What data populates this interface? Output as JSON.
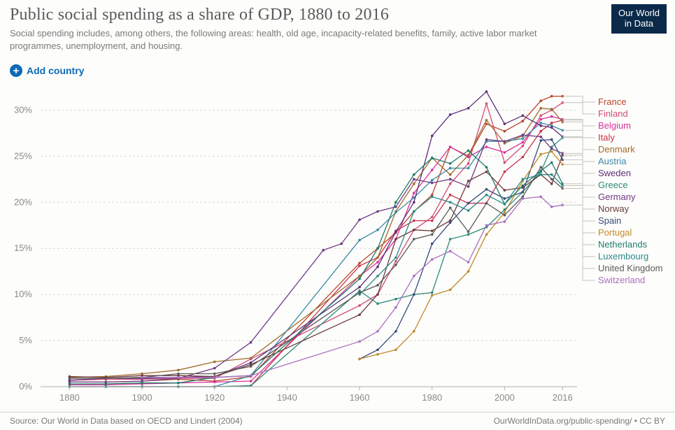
{
  "logo": {
    "line1": "Our World",
    "line2": "in Data",
    "bg": "#0b2a4a"
  },
  "title": "Public social spending as a share of GDP, 1880 to 2016",
  "subtitle": "Social spending includes, among others, the following areas: health, old age, incapacity-related benefits, family, active labor market programmes, unemployment, and housing.",
  "add_country_label": "Add country",
  "footer": {
    "source": "Source: Our World in Data based on OECD and Lindert (2004)",
    "attribution": "OurWorldInData.org/public-spending/ • CC BY"
  },
  "chart": {
    "type": "line",
    "background_color": "#fdfdfb",
    "grid_color": "#d8d8d4",
    "axis_text_color": "#8a8a8a",
    "x": {
      "min": 1872,
      "max": 2020,
      "ticks": [
        1880,
        1900,
        1920,
        1940,
        1960,
        1980,
        2000,
        2016
      ]
    },
    "y": {
      "min": 0,
      "max": 32,
      "ticks": [
        0,
        5,
        10,
        15,
        20,
        25,
        30
      ],
      "suffix": "%"
    },
    "line_width": 1.3,
    "marker_radius": 1.8,
    "legend_order": [
      "France",
      "Finland",
      "Belgium",
      "Italy",
      "Denmark",
      "Austria",
      "Sweden",
      "Greece",
      "Germany",
      "Norway",
      "Spain",
      "Portugal",
      "Netherlands",
      "Luxembourg",
      "United Kingdom",
      "Switzerland"
    ],
    "series": {
      "France": {
        "color": "#b74428",
        "data": {
          "1880": 0.5,
          "1890": 0.5,
          "1900": 0.6,
          "1910": 0.8,
          "1920": 0.6,
          "1930": 1.1,
          "1960": 13.4,
          "1965": 15,
          "1970": 16.7,
          "1975": 19,
          "1980": 20.8,
          "1985": 26,
          "1990": 25,
          "1995": 28.5,
          "2000": 27.7,
          "2005": 28.8,
          "2010": 31,
          "2013": 31.5,
          "2016": 31.5
        }
      },
      "Finland": {
        "color": "#d24c78",
        "data": {
          "1880": 0.7,
          "1890": 0.8,
          "1900": 0.8,
          "1910": 0.9,
          "1920": 0.9,
          "1930": 3,
          "1960": 8.8,
          "1965": 10,
          "1970": 13.6,
          "1975": 17,
          "1980": 18.4,
          "1985": 22,
          "1990": 24.2,
          "1995": 30.7,
          "2000": 24.3,
          "2005": 26.1,
          "2010": 29.4,
          "2013": 30,
          "2016": 30.8
        }
      },
      "Belgium": {
        "color": "#d6349c",
        "data": {
          "1880": 0.2,
          "1890": 0.2,
          "1900": 0.3,
          "1910": 0.4,
          "1920": 0.5,
          "1930": 0.6,
          "1960": 12,
          "1965": 13.5,
          "1970": 16,
          "1975": 21,
          "1980": 23.5,
          "1985": 26,
          "1990": 24.9,
          "1995": 26,
          "2000": 25.4,
          "2005": 26.5,
          "2010": 29,
          "2013": 29.3,
          "2016": 29
        }
      },
      "Italy": {
        "color": "#c9314a",
        "data": {
          "1880": 0,
          "1890": 0,
          "1900": 0,
          "1910": 0,
          "1920": 0,
          "1930": 0.1,
          "1960": 13.1,
          "1965": 14,
          "1970": 16.9,
          "1975": 18,
          "1980": 18,
          "1985": 20.8,
          "1990": 19.9,
          "1995": 19.9,
          "2000": 23.3,
          "2005": 24.9,
          "2010": 27.7,
          "2013": 28.6,
          "2016": 28.9
        }
      },
      "Denmark": {
        "color": "#a06a2c",
        "data": {
          "1880": 1,
          "1890": 1.1,
          "1900": 1.4,
          "1910": 1.8,
          "1920": 2.7,
          "1930": 3.1,
          "1960": 12,
          "1965": 14,
          "1970": 19,
          "1975": 22,
          "1980": 24.8,
          "1985": 23,
          "1990": 25.1,
          "1995": 28.9,
          "2000": 26.4,
          "2005": 27.2,
          "2010": 30.2,
          "2013": 30.1,
          "2016": 28.7
        }
      },
      "Austria": {
        "color": "#3b88a6",
        "data": {
          "1880": 0,
          "1890": 0,
          "1900": 0,
          "1910": 0,
          "1920": 0,
          "1930": 1.2,
          "1960": 15.9,
          "1965": 17,
          "1970": 18.9,
          "1975": 20.5,
          "1980": 22.4,
          "1985": 23.7,
          "1990": 23.7,
          "1995": 26.6,
          "2000": 26.6,
          "2005": 26.9,
          "2010": 28.6,
          "2013": 28.3,
          "2016": 27.8
        }
      },
      "Sweden": {
        "color": "#5b2f7a",
        "data": {
          "1880": 0.7,
          "1890": 0.9,
          "1900": 0.9,
          "1910": 1,
          "1920": 1.1,
          "1930": 2.6,
          "1960": 10.8,
          "1965": 13,
          "1970": 16.8,
          "1975": 20,
          "1980": 27.2,
          "1985": 29.5,
          "1990": 30.2,
          "1995": 32,
          "2000": 28.5,
          "2005": 29.4,
          "2010": 28.3,
          "2013": 28.1,
          "2016": 27.1
        }
      },
      "Greece": {
        "color": "#2f8a7a",
        "data": {
          "1880": 0,
          "1890": 0,
          "1900": 0,
          "1910": 0,
          "1920": 0,
          "1930": 0.1,
          "1960": 10.4,
          "1965": 9,
          "1970": 9.5,
          "1975": 10,
          "1980": 10.2,
          "1985": 16,
          "1990": 16.5,
          "1995": 17.3,
          "2000": 19.2,
          "2005": 21.1,
          "2010": 23.3,
          "2013": 26,
          "2016": 27
        }
      },
      "Germany": {
        "color": "#6f3a87",
        "data": {
          "1880": 0.5,
          "1890": 0.5,
          "1900": 0.6,
          "1910": 0.9,
          "1920": 2,
          "1930": 4.8,
          "1950": 14.8,
          "1955": 15.5,
          "1960": 18.1,
          "1965": 19,
          "1970": 19.5,
          "1975": 22.5,
          "1980": 22.1,
          "1985": 22.5,
          "1990": 21.7,
          "1995": 26.8,
          "2000": 26.6,
          "2005": 27.3,
          "2010": 27.1,
          "2013": 25.8,
          "2016": 25.3
        }
      },
      "Norway": {
        "color": "#6b3b3b",
        "data": {
          "1880": 1.1,
          "1890": 1,
          "1900": 1.2,
          "1910": 1.2,
          "1920": 1.1,
          "1930": 2.4,
          "1960": 7.8,
          "1965": 10,
          "1970": 16,
          "1975": 17,
          "1980": 16.9,
          "1985": 18,
          "1990": 22.3,
          "1995": 23.3,
          "2000": 21.3,
          "2005": 21.6,
          "2010": 23,
          "2013": 22,
          "2016": 25.1
        }
      },
      "Spain": {
        "color": "#3a4a7a",
        "data": {
          "1960": 3,
          "1965": 4,
          "1970": 6,
          "1975": 10,
          "1980": 15.5,
          "1985": 17.8,
          "1990": 19.9,
          "1995": 21.4,
          "2000": 20.4,
          "2005": 21.1,
          "2010": 26.7,
          "2013": 26.8,
          "2016": 24.6
        }
      },
      "Portugal": {
        "color": "#c08a2a",
        "data": {
          "1960": 3,
          "1965": 3.5,
          "1970": 4,
          "1975": 6,
          "1980": 9.9,
          "1985": 10.5,
          "1990": 12.5,
          "1995": 16.5,
          "2000": 18.9,
          "2005": 22.3,
          "2010": 25.2,
          "2013": 25.5,
          "2016": 24.1
        }
      },
      "Netherlands": {
        "color": "#1f7a6a",
        "data": {
          "1880": 0.3,
          "1890": 0.3,
          "1900": 0.4,
          "1910": 0.4,
          "1920": 1,
          "1930": 1.2,
          "1960": 11.7,
          "1965": 15,
          "1970": 20,
          "1975": 23,
          "1980": 24.8,
          "1985": 24.2,
          "1990": 25.6,
          "1995": 23.8,
          "2000": 19.8,
          "2005": 21.8,
          "2010": 23.4,
          "2013": 24.3,
          "2016": 22
        }
      },
      "Luxembourg": {
        "color": "#2a8a8a",
        "data": {
          "1960": 10,
          "1965": 12,
          "1970": 14,
          "1975": 19,
          "1980": 20.6,
          "1985": 20,
          "1990": 19.1,
          "1995": 20.8,
          "2000": 19.8,
          "2005": 22.5,
          "2010": 23,
          "2013": 23,
          "2016": 21.8
        }
      },
      "United Kingdom": {
        "color": "#5a5a5a",
        "data": {
          "1880": 0.9,
          "1890": 0.9,
          "1900": 1,
          "1910": 1.4,
          "1920": 1.4,
          "1930": 2.2,
          "1960": 10.2,
          "1965": 11,
          "1970": 13.2,
          "1975": 16,
          "1980": 16.5,
          "1985": 19.4,
          "1990": 16.8,
          "1995": 19.9,
          "2000": 18.6,
          "2005": 20.6,
          "2010": 23.8,
          "2013": 22.5,
          "2016": 21.5
        }
      },
      "Switzerland": {
        "color": "#ab6fc2",
        "data": {
          "1900": 1,
          "1910": 1,
          "1920": 1,
          "1930": 1.2,
          "1960": 4.9,
          "1965": 6,
          "1970": 8.6,
          "1975": 12,
          "1980": 13.8,
          "1985": 14.7,
          "1990": 13.5,
          "1995": 17.5,
          "2000": 17.9,
          "2005": 20.4,
          "2010": 20.6,
          "2013": 19.5,
          "2016": 19.7
        }
      }
    }
  }
}
